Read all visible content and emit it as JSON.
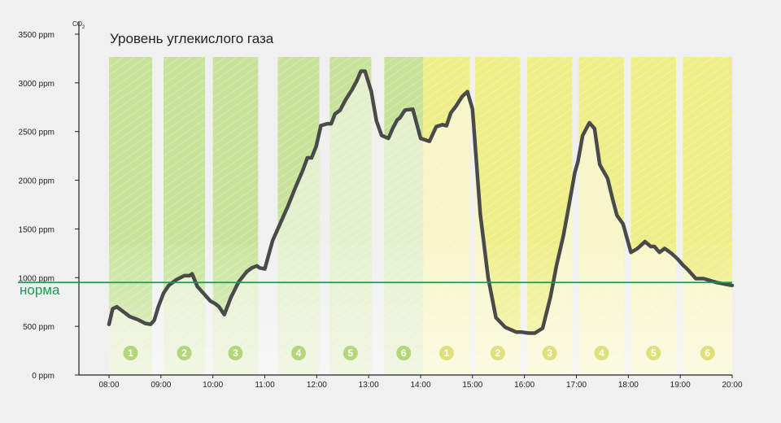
{
  "chart_data": {
    "type": "line",
    "title": "Уровень углекислого газа",
    "ylabel_main": "CO",
    "ylabel_sub": "2",
    "norm_label": "норма",
    "norm_value": 950,
    "ylim": [
      0,
      3500
    ],
    "xlim": [
      8,
      20
    ],
    "yticks": [
      {
        "value": 0,
        "label": "0 ppm"
      },
      {
        "value": 500,
        "label": "500 ppm"
      },
      {
        "value": 1000,
        "label": "1000 ppm"
      },
      {
        "value": 1500,
        "label": "1500 ppm"
      },
      {
        "value": 2000,
        "label": "2000 ppm"
      },
      {
        "value": 2500,
        "label": "2500 ppm"
      },
      {
        "value": 3000,
        "label": "3000 ppm"
      },
      {
        "value": 3500,
        "label": "3500 ppm"
      }
    ],
    "xticks": [
      {
        "value": 8,
        "label": "08:00"
      },
      {
        "value": 9,
        "label": "09:00"
      },
      {
        "value": 10,
        "label": "10:00"
      },
      {
        "value": 11,
        "label": "11:00"
      },
      {
        "value": 12,
        "label": "12:00"
      },
      {
        "value": 13,
        "label": "13:00"
      },
      {
        "value": 14,
        "label": "14:00"
      },
      {
        "value": 15,
        "label": "15:00"
      },
      {
        "value": 16,
        "label": "16:00"
      },
      {
        "value": 17,
        "label": "17:00"
      },
      {
        "value": 18,
        "label": "18:00"
      },
      {
        "value": 19,
        "label": "19:00"
      },
      {
        "value": 20,
        "label": "20:00"
      }
    ],
    "colors": {
      "line": "#4a4a4a",
      "norm": "#1b9a57",
      "green_dark": "#c7e39a",
      "green_light": "#e4f0cc",
      "yellow_dark": "#eeee88",
      "yellow_light": "#f7f6c8",
      "badge_green": "#b4d67a",
      "badge_yellow": "#dfe07c"
    },
    "periods": [
      {
        "label": "1",
        "start": 8.0,
        "end": 8.83,
        "color": "green"
      },
      {
        "label": "2",
        "start": 9.05,
        "end": 9.85,
        "color": "green"
      },
      {
        "label": "3",
        "start": 10.0,
        "end": 10.87,
        "color": "green"
      },
      {
        "label": "4",
        "start": 11.25,
        "end": 12.05,
        "color": "green"
      },
      {
        "label": "5",
        "start": 12.25,
        "end": 13.05,
        "color": "green"
      },
      {
        "label": "6",
        "start": 13.3,
        "end": 14.05,
        "color": "green"
      },
      {
        "label": "1",
        "start": 14.05,
        "end": 14.95,
        "color": "yellow"
      },
      {
        "label": "2",
        "start": 15.05,
        "end": 15.92,
        "color": "yellow"
      },
      {
        "label": "3",
        "start": 16.05,
        "end": 16.92,
        "color": "yellow"
      },
      {
        "label": "4",
        "start": 17.05,
        "end": 17.92,
        "color": "yellow"
      },
      {
        "label": "5",
        "start": 18.05,
        "end": 18.92,
        "color": "yellow"
      },
      {
        "label": "6",
        "start": 19.05,
        "end": 20.0,
        "color": "yellow"
      }
    ],
    "series": [
      {
        "x": [
          8.0,
          8.07,
          8.15,
          8.25,
          8.4,
          8.55,
          8.7,
          8.8,
          8.87,
          8.95,
          9.05,
          9.15,
          9.3,
          9.45,
          9.55,
          9.6,
          9.7,
          9.85,
          9.95,
          10.05,
          10.12,
          10.22,
          10.35,
          10.5,
          10.65,
          10.75,
          10.85,
          10.9,
          11.0,
          11.15,
          11.3,
          11.45,
          11.6,
          11.73,
          11.82,
          11.9,
          11.99,
          12.08,
          12.2,
          12.28,
          12.35,
          12.45,
          12.55,
          12.62,
          12.68,
          12.77,
          12.85,
          12.93,
          13.05,
          13.15,
          13.25,
          13.38,
          13.47,
          13.55,
          13.6,
          13.7,
          13.85,
          14.0,
          14.17,
          14.3,
          14.42,
          14.5,
          14.58,
          14.68,
          14.8,
          14.9,
          15.0,
          15.15,
          15.3,
          15.45,
          15.63,
          15.8,
          15.85,
          15.95,
          16.08,
          16.2,
          16.35,
          16.5,
          16.62,
          16.75,
          16.85,
          16.97,
          17.03,
          17.12,
          17.25,
          17.35,
          17.45,
          17.6,
          17.7,
          17.78,
          17.9,
          18.05,
          18.15,
          18.2,
          18.32,
          18.43,
          18.5,
          18.6,
          18.7,
          18.83,
          18.95,
          19.05,
          19.15,
          19.3,
          19.45,
          19.7,
          20.0
        ],
        "y": [
          520,
          680,
          700,
          660,
          600,
          570,
          530,
          520,
          560,
          700,
          840,
          920,
          980,
          1020,
          1020,
          1040,
          910,
          820,
          760,
          730,
          700,
          620,
          800,
          960,
          1060,
          1100,
          1120,
          1100,
          1090,
          1380,
          1560,
          1740,
          1940,
          2100,
          2230,
          2230,
          2350,
          2560,
          2580,
          2580,
          2680,
          2720,
          2820,
          2880,
          2930,
          3020,
          3120,
          3120,
          2910,
          2610,
          2460,
          2430,
          2540,
          2620,
          2640,
          2720,
          2730,
          2430,
          2400,
          2550,
          2570,
          2560,
          2690,
          2760,
          2860,
          2910,
          2730,
          1650,
          1000,
          590,
          490,
          450,
          440,
          440,
          430,
          430,
          480,
          800,
          1130,
          1430,
          1720,
          2080,
          2190,
          2460,
          2590,
          2530,
          2160,
          2020,
          1800,
          1640,
          1550,
          1260,
          1290,
          1310,
          1370,
          1320,
          1320,
          1260,
          1300,
          1250,
          1190,
          1130,
          1080,
          990,
          990,
          950,
          920
        ]
      }
    ]
  }
}
